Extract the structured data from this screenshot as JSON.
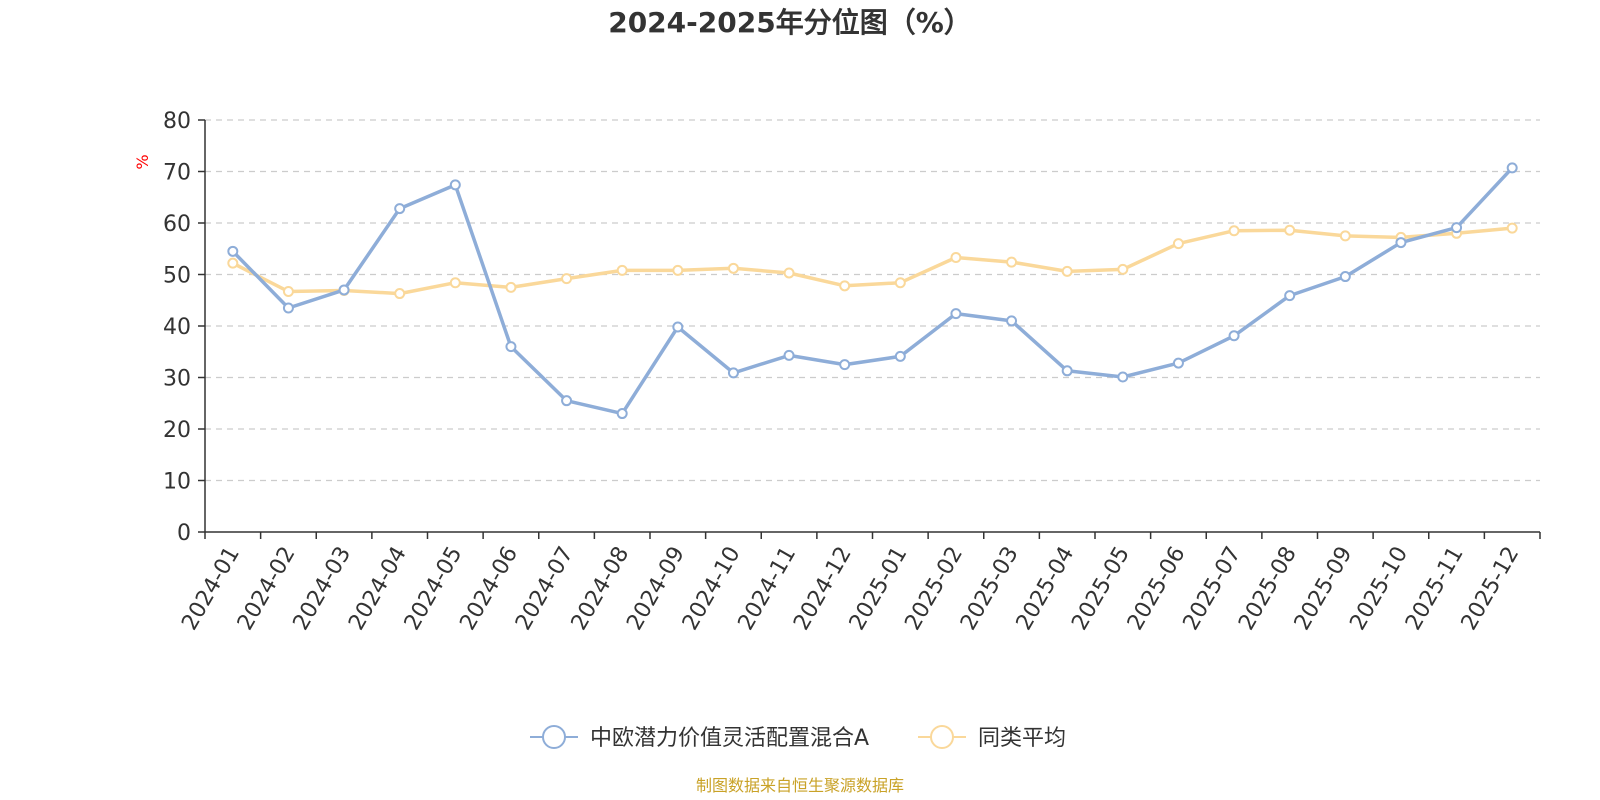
{
  "chart_data": {
    "type": "line",
    "title": "2024-2025年分位图（%）",
    "ylabel": "%",
    "xlabel": "",
    "ylim": [
      0,
      80
    ],
    "yticks": [
      0,
      10,
      20,
      30,
      40,
      50,
      60,
      70,
      80
    ],
    "grid": true,
    "legend_position": "bottom-center",
    "categories": [
      "2024-01",
      "2024-02",
      "2024-03",
      "2024-04",
      "2024-05",
      "2024-06",
      "2024-07",
      "2024-08",
      "2024-09",
      "2024-10",
      "2024-11",
      "2024-12",
      "2025-01",
      "2025-02",
      "2025-03",
      "2025-04",
      "2025-05",
      "2025-06",
      "2025-07",
      "2025-08",
      "2025-09",
      "2025-10",
      "2025-11",
      "2025-12"
    ],
    "series": [
      {
        "name": "中欧潜力价值灵活配置混合A",
        "color": "#8eadd8",
        "values": [
          54.5,
          43.5,
          47.0,
          62.8,
          67.4,
          36.0,
          25.5,
          23.0,
          39.8,
          30.9,
          34.3,
          32.5,
          34.1,
          42.4,
          41.0,
          31.3,
          30.1,
          32.8,
          38.1,
          45.9,
          49.6,
          56.2,
          59.1,
          70.7
        ]
      },
      {
        "name": "同类平均",
        "color": "#fad89a",
        "values": [
          52.2,
          46.7,
          46.9,
          46.3,
          48.4,
          47.5,
          49.2,
          50.8,
          50.8,
          51.2,
          50.3,
          47.8,
          48.4,
          53.3,
          52.4,
          50.6,
          51.0,
          56.0,
          58.5,
          58.6,
          57.5,
          57.2,
          58.0,
          59.0
        ]
      }
    ]
  },
  "footer": {
    "source": "制图数据来自恒生聚源数据库"
  },
  "colors": {
    "text": "#333333",
    "axis": "#333333",
    "grid": "#cccccc",
    "unit_label": "#ff0000",
    "footer": "#c9a227"
  }
}
